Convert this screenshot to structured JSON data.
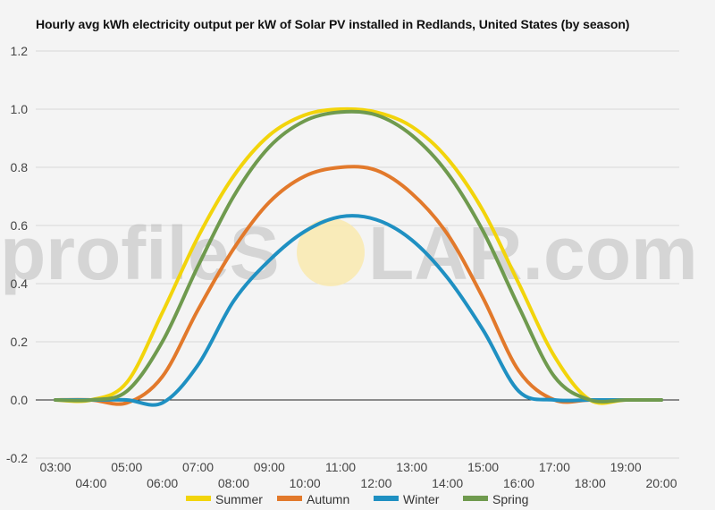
{
  "watermark": {
    "left": "profileS",
    "right": "LAR.com"
  },
  "chart_data": {
    "type": "line",
    "title": "Hourly avg kWh electricity output per kW of Solar PV installed in Redlands, United States (by season)",
    "xlabel": "",
    "ylabel": "",
    "x_tick_labels_upper": [
      "03:00",
      "05:00",
      "07:00",
      "09:00",
      "11:00",
      "13:00",
      "15:00",
      "17:00",
      "19:00"
    ],
    "x_tick_labels_lower": [
      "04:00",
      "06:00",
      "08:00",
      "10:00",
      "12:00",
      "14:00",
      "16:00",
      "18:00",
      "20:00"
    ],
    "xlim": [
      3,
      20
    ],
    "ylim": [
      -0.2,
      1.2
    ],
    "y_ticks": [
      "-0.2",
      "0.0",
      "0.2",
      "0.4",
      "0.6",
      "0.8",
      "1.0",
      "1.2"
    ],
    "grid": true,
    "legend_position": "bottom",
    "x": [
      "03:00",
      "04:00",
      "05:00",
      "06:00",
      "07:00",
      "08:00",
      "09:00",
      "10:00",
      "11:00",
      "12:00",
      "13:00",
      "14:00",
      "15:00",
      "16:00",
      "17:00",
      "18:00",
      "19:00",
      "20:00"
    ],
    "series": [
      {
        "name": "Summer",
        "color": "#f2d40b",
        "values": [
          0.0,
          0.0,
          0.06,
          0.3,
          0.56,
          0.77,
          0.91,
          0.98,
          1.0,
          0.99,
          0.94,
          0.83,
          0.65,
          0.4,
          0.15,
          0.0,
          0.0,
          0.0
        ]
      },
      {
        "name": "Autumn",
        "color": "#e2792b",
        "values": [
          0.0,
          0.0,
          -0.01,
          0.08,
          0.31,
          0.52,
          0.68,
          0.77,
          0.8,
          0.79,
          0.71,
          0.57,
          0.35,
          0.1,
          0.0,
          0.0,
          0.0,
          0.0
        ]
      },
      {
        "name": "Winter",
        "color": "#1f90c2",
        "values": [
          0.0,
          0.0,
          0.0,
          -0.01,
          0.12,
          0.34,
          0.48,
          0.58,
          0.63,
          0.62,
          0.55,
          0.42,
          0.24,
          0.03,
          0.0,
          0.0,
          0.0,
          0.0
        ]
      },
      {
        "name": "Spring",
        "color": "#6f9a4e",
        "values": [
          0.0,
          0.0,
          0.03,
          0.2,
          0.46,
          0.7,
          0.87,
          0.96,
          0.99,
          0.98,
          0.91,
          0.78,
          0.58,
          0.32,
          0.08,
          0.0,
          0.0,
          0.0
        ]
      }
    ]
  }
}
